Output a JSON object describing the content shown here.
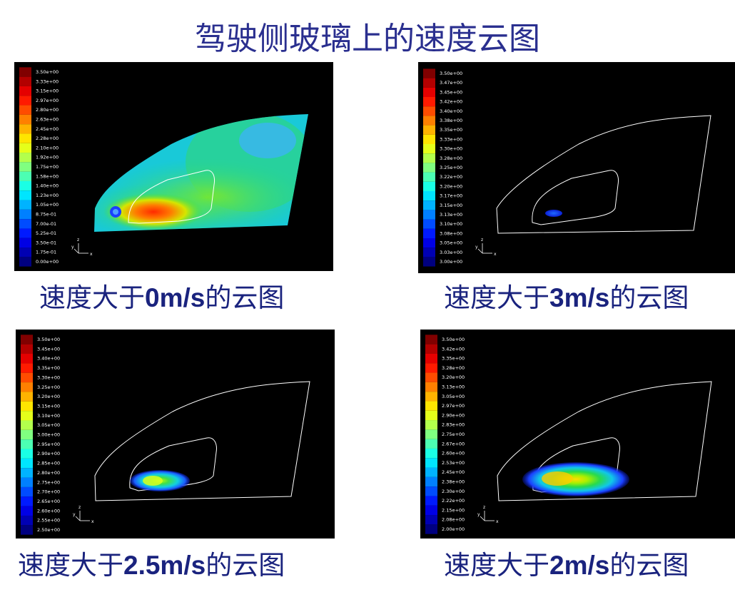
{
  "title": "驾驶侧玻璃上的速度云图",
  "colors": {
    "title": "#2a2f8f",
    "caption": "#1a237e",
    "outline": "#ffffff",
    "background": "#000000"
  },
  "chart_data": [
    {
      "type": "heatmap",
      "caption_prefix": "速度大于",
      "caption_value": "0m/s",
      "caption_suffix": "的云图",
      "colorbar": [
        "3.50e+00",
        "3.33e+00",
        "3.15e+00",
        "2.97e+00",
        "2.80e+00",
        "2.63e+00",
        "2.45e+00",
        "2.28e+00",
        "2.10e+00",
        "1.92e+00",
        "1.75e+00",
        "1.58e+00",
        "1.40e+00",
        "1.23e+00",
        "1.05e+00",
        "8.75e-01",
        "7.00e-01",
        "5.25e-01",
        "3.50e-01",
        "1.75e-01",
        "0.00e+00"
      ],
      "range": [
        0.0,
        3.5
      ],
      "filled": true
    },
    {
      "type": "heatmap",
      "caption_prefix": "速度大于",
      "caption_value": "3m/s",
      "caption_suffix": "的云图",
      "colorbar": [
        "3.50e+00",
        "3.47e+00",
        "3.45e+00",
        "3.42e+00",
        "3.40e+00",
        "3.38e+00",
        "3.35e+00",
        "3.33e+00",
        "3.30e+00",
        "3.28e+00",
        "3.25e+00",
        "3.22e+00",
        "3.20e+00",
        "3.17e+00",
        "3.15e+00",
        "3.13e+00",
        "3.10e+00",
        "3.08e+00",
        "3.05e+00",
        "3.03e+00",
        "3.00e+00"
      ],
      "range": [
        3.0,
        3.5
      ],
      "filled": false
    },
    {
      "type": "heatmap",
      "caption_prefix": "速度大于",
      "caption_value": "2.5m/s",
      "caption_suffix": "的云图",
      "colorbar": [
        "3.50e+00",
        "3.45e+00",
        "3.40e+00",
        "3.35e+00",
        "3.30e+00",
        "3.25e+00",
        "3.20e+00",
        "3.15e+00",
        "3.10e+00",
        "3.05e+00",
        "3.00e+00",
        "2.95e+00",
        "2.90e+00",
        "2.85e+00",
        "2.80e+00",
        "2.75e+00",
        "2.70e+00",
        "2.65e+00",
        "2.60e+00",
        "2.55e+00",
        "2.50e+00"
      ],
      "range": [
        2.5,
        3.5
      ],
      "filled": false
    },
    {
      "type": "heatmap",
      "caption_prefix": "速度大于",
      "caption_value": "2m/s",
      "caption_suffix": "的云图",
      "colorbar": [
        "3.50e+00",
        "3.42e+00",
        "3.35e+00",
        "3.28e+00",
        "3.20e+00",
        "3.13e+00",
        "3.05e+00",
        "2.97e+00",
        "2.90e+00",
        "2.83e+00",
        "2.75e+00",
        "2.67e+00",
        "2.60e+00",
        "2.53e+00",
        "2.45e+00",
        "2.38e+00",
        "2.30e+00",
        "2.22e+00",
        "2.15e+00",
        "2.08e+00",
        "2.00e+00"
      ],
      "range": [
        2.0,
        3.5
      ],
      "filled": false
    }
  ],
  "axis_triad": {
    "vertical": "Z",
    "horizontal": "X",
    "diagonal": "Y"
  }
}
